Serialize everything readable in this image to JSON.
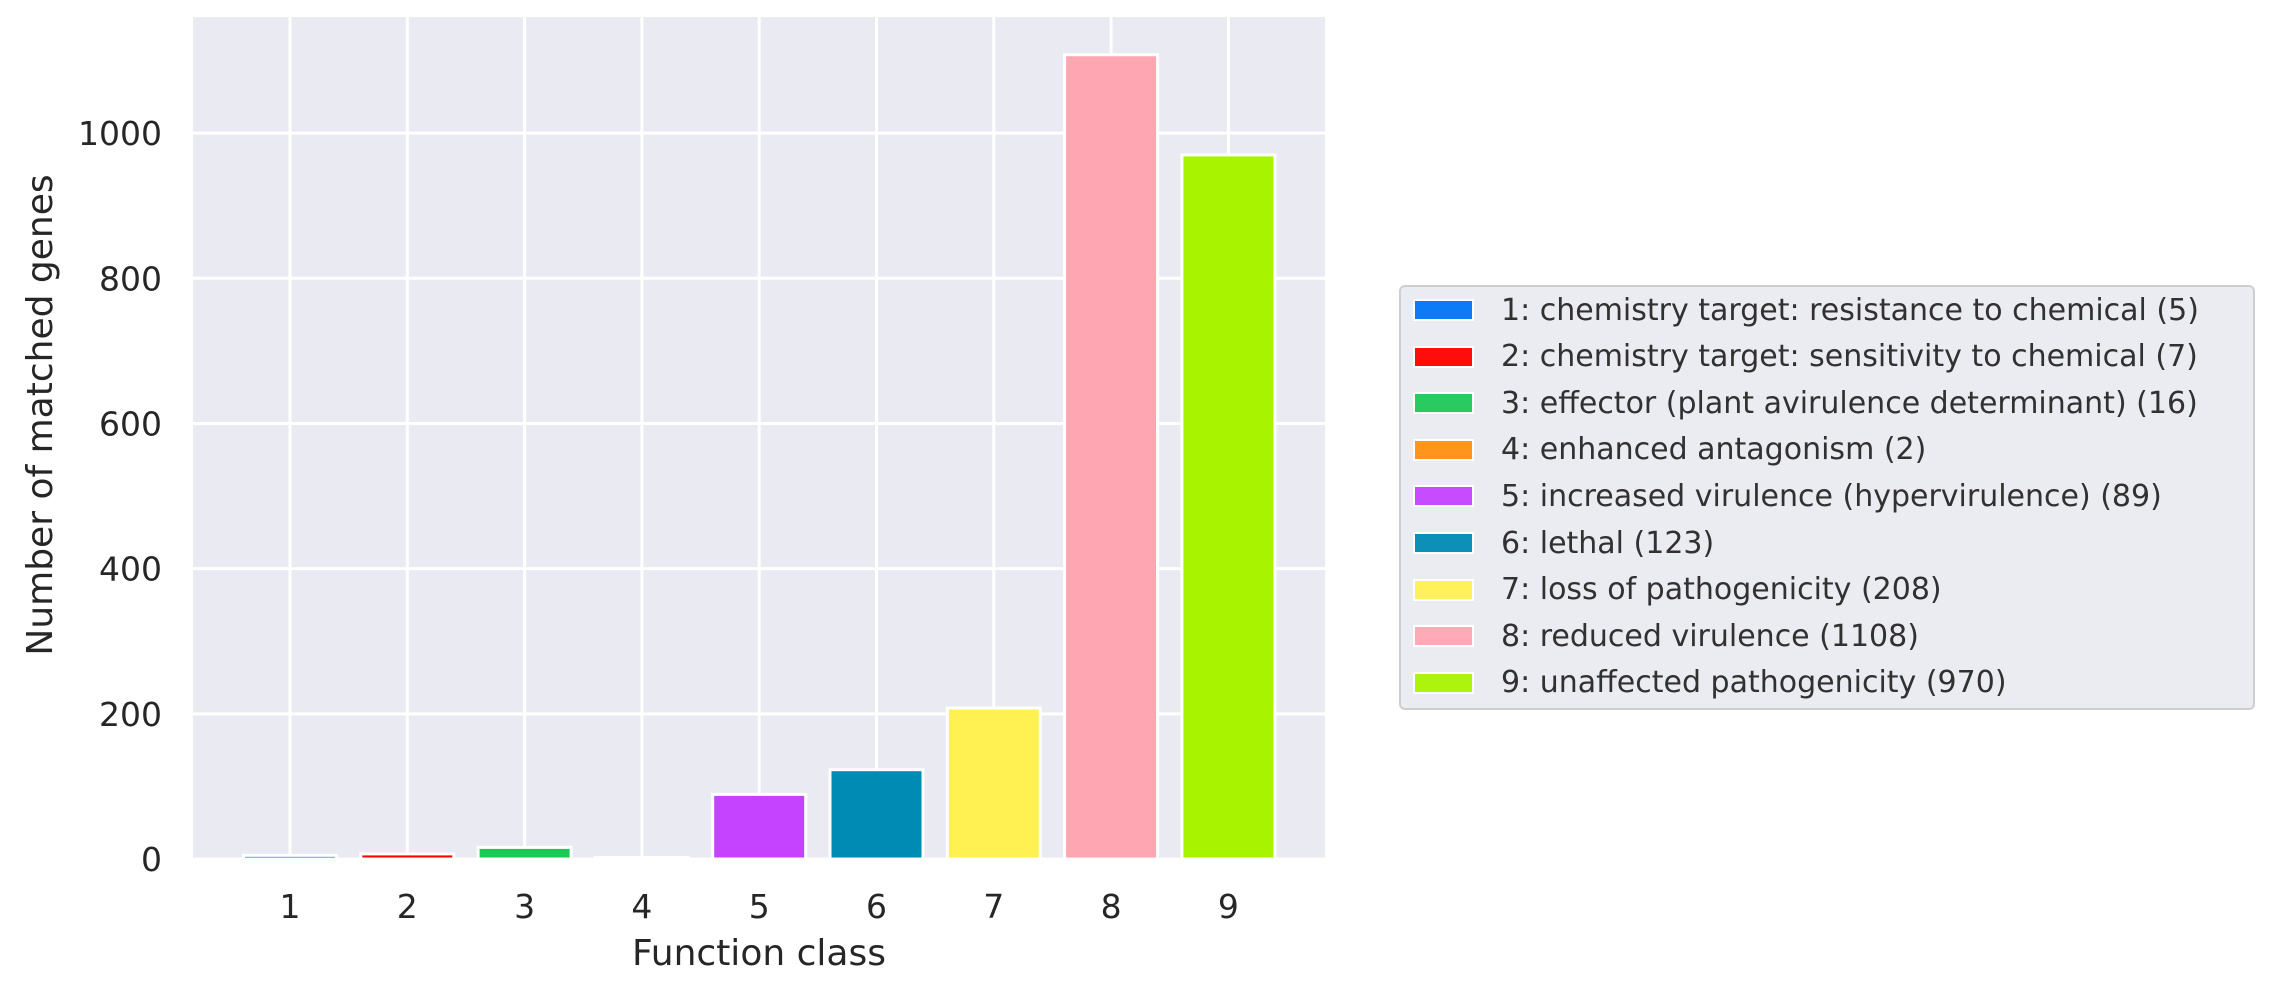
{
  "chart_data": {
    "type": "bar",
    "title": "",
    "xlabel": "Function class",
    "ylabel": "Number of matched genes",
    "categories": [
      "1",
      "2",
      "3",
      "4",
      "5",
      "6",
      "7",
      "8",
      "9"
    ],
    "values": [
      5,
      7,
      16,
      2,
      89,
      123,
      208,
      1108,
      970
    ],
    "colors": [
      "#0173f7",
      "#ff0000",
      "#1ec857",
      "#ff9010",
      "#c543ff",
      "#008bb4",
      "#fff152",
      "#ffa6b3",
      "#a8f400"
    ],
    "ylim": [
      0,
      1160
    ],
    "yticks": [
      0,
      200,
      400,
      600,
      800,
      1000
    ],
    "grid": true,
    "style": "seaborn-darkgrid",
    "legend_position": "right, outside plot",
    "legend": [
      "1: chemistry target: resistance to chemical (5)",
      "2: chemistry target: sensitivity to chemical (7)",
      "3: effector (plant avirulence determinant) (16)",
      "4: enhanced antagonism (2)",
      "5: increased virulence (hypervirulence) (89)",
      "6: lethal (123)",
      "7: loss of pathogenicity (208)",
      "8: reduced virulence (1108)",
      "9: unaffected pathogenicity (970)"
    ]
  },
  "colors": {
    "plot_bg": "#eaeaf2",
    "grid": "#ffffff",
    "text": "#262626"
  }
}
